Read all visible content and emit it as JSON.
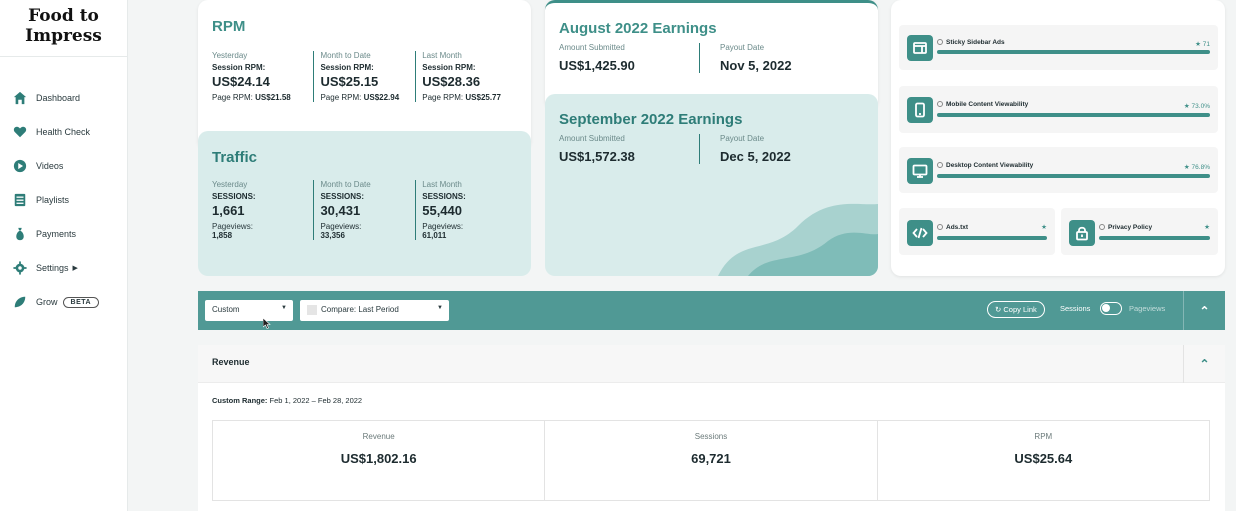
{
  "brand": {
    "line1": "Food to",
    "line2": "Impress"
  },
  "nav": [
    {
      "label": "Dashboard",
      "icon": "home-icon"
    },
    {
      "label": "Health Check",
      "icon": "heart-icon"
    },
    {
      "label": "Videos",
      "icon": "play-icon"
    },
    {
      "label": "Playlists",
      "icon": "list-icon"
    },
    {
      "label": "Payments",
      "icon": "money-bag-icon"
    },
    {
      "label": "Settings",
      "icon": "gear-icon"
    },
    {
      "label": "Grow",
      "icon": "leaf-icon",
      "badge": "BETA"
    }
  ],
  "rpm": {
    "title": "RPM",
    "cols": [
      {
        "period": "Yesterday",
        "metric": "Session RPM:",
        "value": "US$24.14",
        "sub_label": "Page RPM:",
        "sub_value": "US$21.58"
      },
      {
        "period": "Month to Date",
        "metric": "Session RPM:",
        "value": "US$25.15",
        "sub_label": "Page RPM:",
        "sub_value": "US$22.94"
      },
      {
        "period": "Last Month",
        "metric": "Session RPM:",
        "value": "US$28.36",
        "sub_label": "Page RPM:",
        "sub_value": "US$25.77"
      }
    ]
  },
  "traffic": {
    "title": "Traffic",
    "cols": [
      {
        "period": "Yesterday",
        "metric": "SESSIONS:",
        "value": "1,661",
        "sub_label": "Pageviews:",
        "sub_value": "1,858"
      },
      {
        "period": "Month to Date",
        "metric": "SESSIONS:",
        "value": "30,431",
        "sub_label": "Pageviews:",
        "sub_value": "33,356"
      },
      {
        "period": "Last Month",
        "metric": "SESSIONS:",
        "value": "55,440",
        "sub_label": "Pageviews:",
        "sub_value": "61,011"
      }
    ]
  },
  "august": {
    "title": "August 2022 Earnings",
    "submitted_label": "Amount Submitted",
    "submitted": "US$1,425.90",
    "payout_label": "Payout Date",
    "payout": "Nov 5, 2022"
  },
  "september": {
    "title": "September 2022 Earnings",
    "submitted_label": "Amount Submitted",
    "submitted": "US$1,572.38",
    "payout_label": "Payout Date",
    "payout": "Dec 5, 2022"
  },
  "features": {
    "sticky": {
      "name": "Sticky Sidebar Ads",
      "score": "★ 71"
    },
    "mobile": {
      "name": "Mobile Content Viewability",
      "score": "★ 73.0%"
    },
    "desktop": {
      "name": "Desktop Content Viewability",
      "score": "★ 76.8%"
    },
    "adstxt": {
      "name": "Ads.txt",
      "score": "★"
    },
    "privacy": {
      "name": "Privacy Policy",
      "score": "★"
    }
  },
  "toolbar": {
    "range_select": "Custom",
    "compare_select": "Compare: Last Period",
    "copy_link": "Copy Link",
    "toggle_left": "Sessions",
    "toggle_right": "Pageviews"
  },
  "revenue": {
    "title": "Revenue",
    "range_label": "Custom Range:",
    "range_value": "Feb 1, 2022 – Feb 28, 2022",
    "metrics": [
      {
        "label": "Revenue",
        "value": "US$1,802.16"
      },
      {
        "label": "Sessions",
        "value": "69,721"
      },
      {
        "label": "RPM",
        "value": "US$25.64"
      }
    ]
  },
  "colors": {
    "accent": "#3e8f88",
    "toolbar": "#509995",
    "tint": "#d9eceb"
  }
}
